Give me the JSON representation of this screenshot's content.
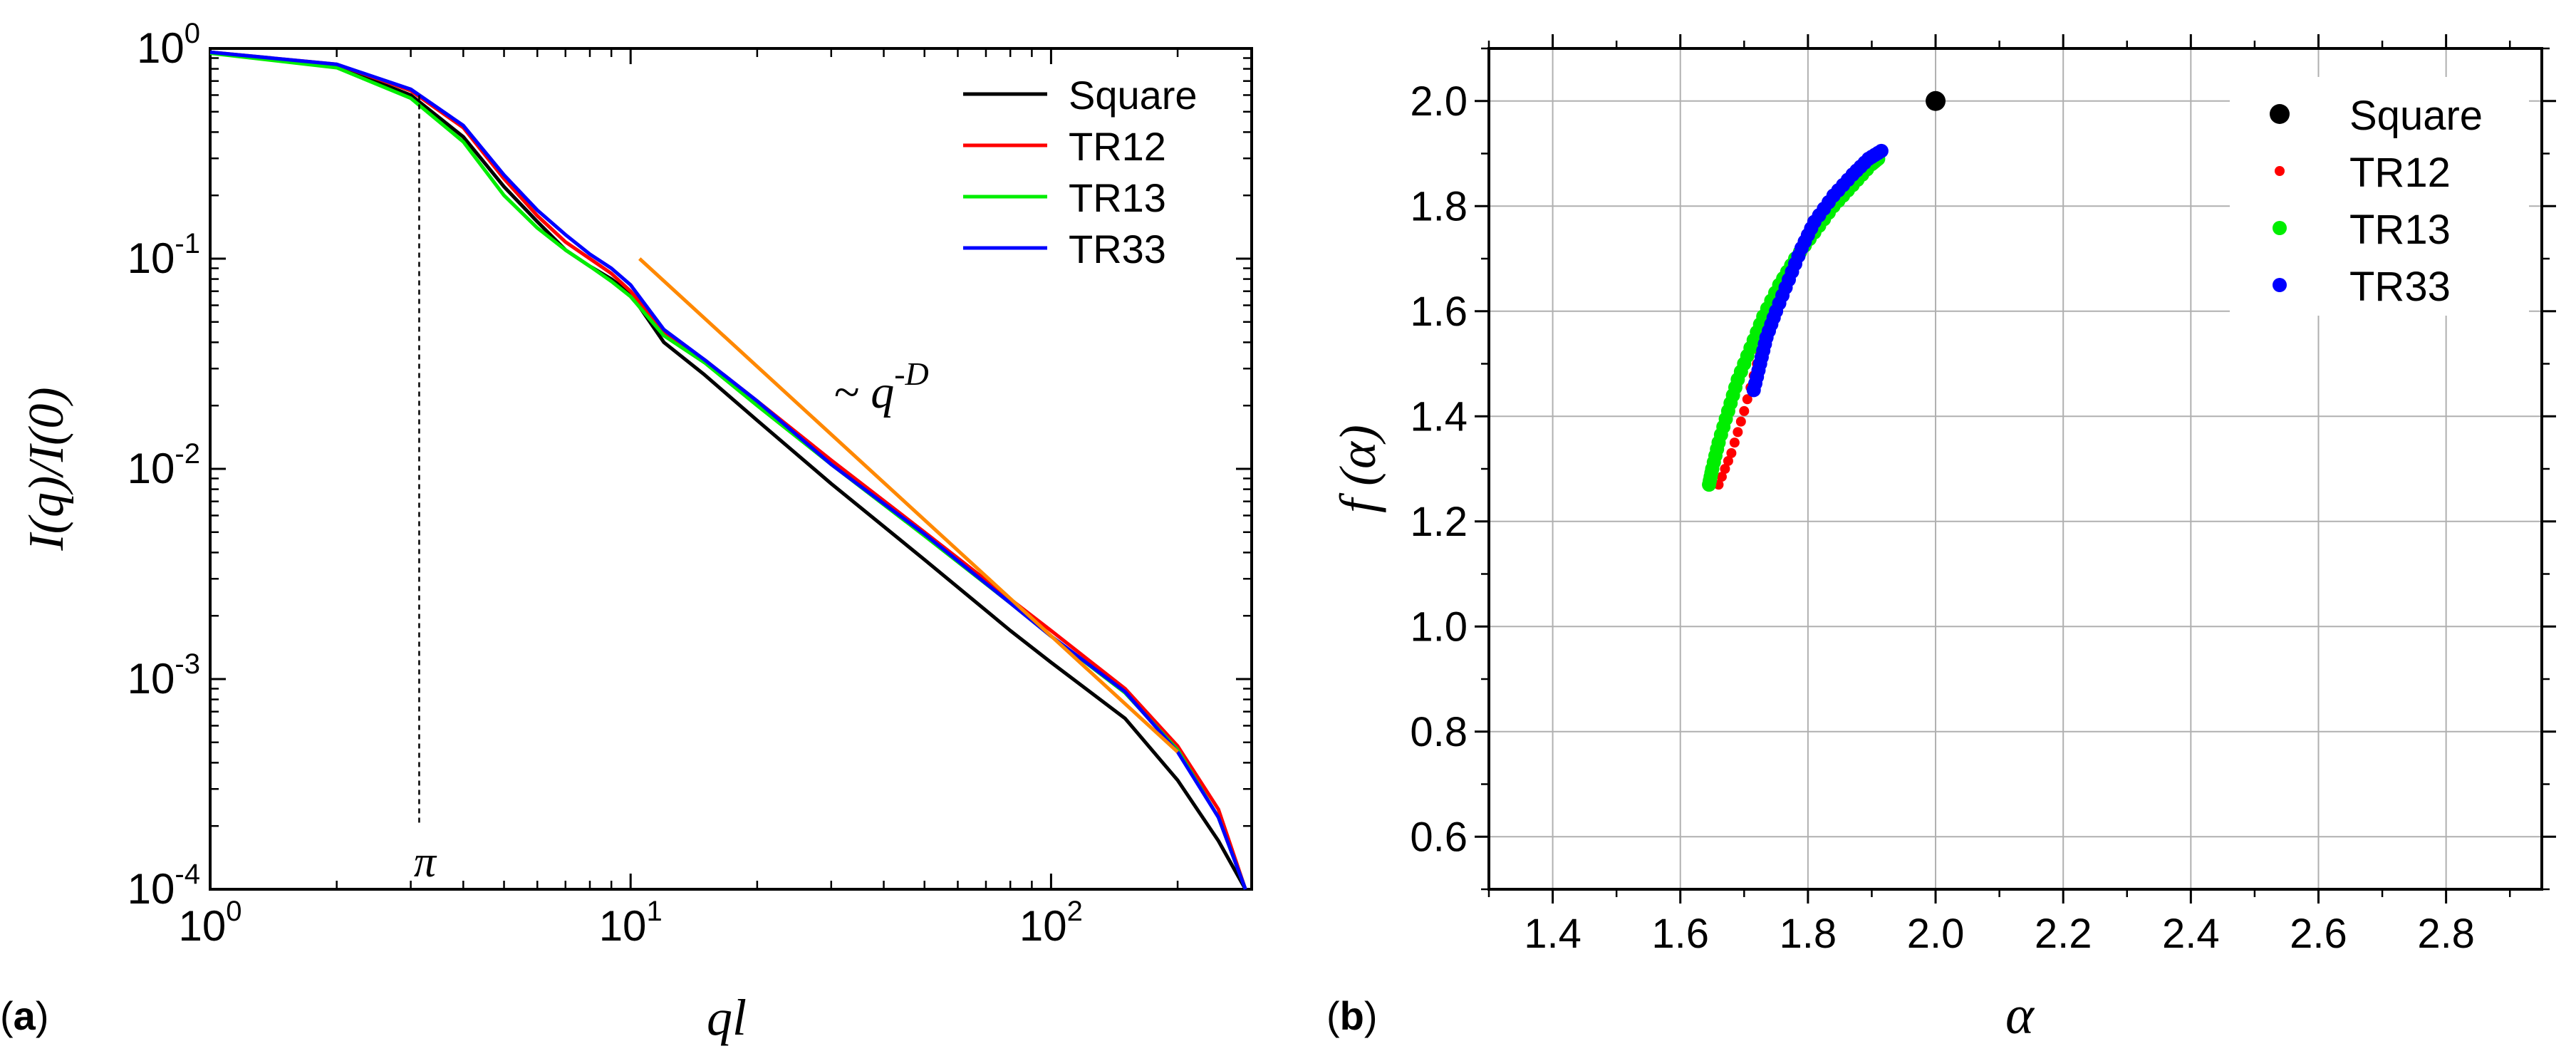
{
  "panels": {
    "a": {
      "letter": "a"
    },
    "b": {
      "letter": "b"
    }
  },
  "chart_data": [
    {
      "id": "a",
      "type": "line",
      "scale": "log-log",
      "xlabel": "ql",
      "ylabel": "I(q)/I(0)",
      "xlim": [
        1,
        300
      ],
      "ylim": [
        0.0001,
        1
      ],
      "x_ticks": [
        {
          "value": 1,
          "base": "10",
          "exp": "0"
        },
        {
          "value": 10,
          "base": "10",
          "exp": "1"
        },
        {
          "value": 100,
          "base": "10",
          "exp": "2"
        }
      ],
      "y_ticks": [
        {
          "value": 1,
          "base": "10",
          "exp": "0"
        },
        {
          "value": 0.1,
          "base": "10",
          "exp": "-1"
        },
        {
          "value": 0.01,
          "base": "10",
          "exp": "-2"
        },
        {
          "value": 0.001,
          "base": "10",
          "exp": "-3"
        },
        {
          "value": 0.0001,
          "base": "10",
          "exp": "-4"
        }
      ],
      "legend_position": "top-right",
      "series": [
        {
          "name": "Square",
          "color": "#000000",
          "x": [
            1,
            2,
            3,
            4,
            5,
            6,
            7,
            8,
            9,
            10,
            12,
            15,
            20,
            30,
            50,
            80,
            100,
            150,
            200,
            250,
            290
          ],
          "y": [
            0.96,
            0.82,
            0.6,
            0.38,
            0.22,
            0.15,
            0.11,
            0.092,
            0.08,
            0.068,
            0.04,
            0.028,
            0.017,
            0.0085,
            0.0037,
            0.0017,
            0.0012,
            0.00065,
            0.00033,
            0.00017,
            0.0001
          ]
        },
        {
          "name": "TR12",
          "color": "#ff0000",
          "x": [
            1,
            2,
            3,
            4,
            5,
            6,
            7,
            8,
            9,
            10,
            12,
            15,
            20,
            30,
            50,
            80,
            100,
            150,
            200,
            250,
            290
          ],
          "y": [
            0.96,
            0.84,
            0.63,
            0.42,
            0.24,
            0.16,
            0.12,
            0.1,
            0.085,
            0.07,
            0.045,
            0.033,
            0.021,
            0.011,
            0.005,
            0.0024,
            0.0017,
            0.0009,
            0.00048,
            0.00024,
            0.0001
          ]
        },
        {
          "name": "TR13",
          "color": "#00ee00",
          "x": [
            1,
            2,
            3,
            4,
            5,
            6,
            7,
            8,
            9,
            10,
            12,
            15,
            20,
            30,
            50,
            80,
            100,
            150,
            200,
            250,
            290
          ],
          "y": [
            0.95,
            0.81,
            0.58,
            0.36,
            0.2,
            0.14,
            0.11,
            0.092,
            0.078,
            0.066,
            0.043,
            0.032,
            0.02,
            0.0105,
            0.0048,
            0.0023,
            0.0016,
            0.00086,
            0.00046,
            0.00022,
            0.0001
          ]
        },
        {
          "name": "TR33",
          "color": "#0000ff",
          "x": [
            1,
            2,
            3,
            4,
            5,
            6,
            7,
            8,
            9,
            10,
            12,
            15,
            20,
            30,
            50,
            80,
            100,
            150,
            200,
            250,
            290
          ],
          "y": [
            0.96,
            0.84,
            0.64,
            0.43,
            0.25,
            0.17,
            0.13,
            0.105,
            0.09,
            0.075,
            0.046,
            0.033,
            0.021,
            0.0105,
            0.0049,
            0.0023,
            0.0016,
            0.00087,
            0.00045,
            0.00022,
            0.0001
          ]
        }
      ],
      "annotations": {
        "fit_label": {
          "prefix": "~ q",
          "exp": "-D"
        },
        "fit_line": {
          "x": [
            10.5,
            200
          ],
          "y": [
            0.1,
            0.00045
          ],
          "color": "#ff8800"
        },
        "pi_line": {
          "x": 3.1416,
          "y_range": [
            0.0002,
            0.6
          ]
        },
        "pi_label": "π"
      }
    },
    {
      "id": "b",
      "type": "scatter",
      "xlabel": "α",
      "ylabel": "f (α)",
      "xlim": [
        1.3,
        2.95
      ],
      "ylim": [
        0.5,
        2.1
      ],
      "grid": true,
      "x_ticks": [
        "1.4",
        "1.6",
        "1.8",
        "2.0",
        "2.2",
        "2.4",
        "2.6",
        "2.8"
      ],
      "y_ticks": [
        "0.6",
        "0.8",
        "1.0",
        "1.2",
        "1.4",
        "1.6",
        "1.8",
        "2.0"
      ],
      "legend_position": "top-right",
      "series": [
        {
          "name": "Square",
          "color": "#000000",
          "marker": "large",
          "points": [
            [
              2.0,
              2.0
            ]
          ]
        },
        {
          "name": "TR12",
          "color": "#ff0000",
          "marker": "small",
          "points": [
            [
              1.66,
              1.27
            ],
            [
              1.68,
              1.33
            ],
            [
              1.7,
              1.41
            ],
            [
              1.72,
              1.5
            ],
            [
              1.74,
              1.58
            ],
            [
              1.77,
              1.66
            ],
            [
              1.8,
              1.74
            ],
            [
              1.84,
              1.81
            ],
            [
              1.88,
              1.86
            ],
            [
              1.91,
              1.89
            ]
          ]
        },
        {
          "name": "TR13",
          "color": "#00ee00",
          "marker": "medium",
          "points": [
            [
              1.645,
              1.27
            ],
            [
              1.65,
              1.3
            ],
            [
              1.66,
              1.35
            ],
            [
              1.675,
              1.41
            ],
            [
              1.69,
              1.47
            ],
            [
              1.71,
              1.53
            ],
            [
              1.73,
              1.59
            ],
            [
              1.755,
              1.65
            ],
            [
              1.78,
              1.7
            ],
            [
              1.81,
              1.75
            ],
            [
              1.84,
              1.8
            ],
            [
              1.87,
              1.84
            ],
            [
              1.9,
              1.88
            ],
            [
              1.91,
              1.89
            ]
          ]
        },
        {
          "name": "TR33",
          "color": "#0000ff",
          "marker": "medium",
          "points": [
            [
              1.715,
              1.45
            ],
            [
              1.725,
              1.5
            ],
            [
              1.735,
              1.55
            ],
            [
              1.75,
              1.6
            ],
            [
              1.77,
              1.66
            ],
            [
              1.79,
              1.72
            ],
            [
              1.81,
              1.77
            ],
            [
              1.84,
              1.82
            ],
            [
              1.87,
              1.86
            ],
            [
              1.895,
              1.89
            ],
            [
              1.915,
              1.905
            ]
          ]
        }
      ]
    }
  ]
}
